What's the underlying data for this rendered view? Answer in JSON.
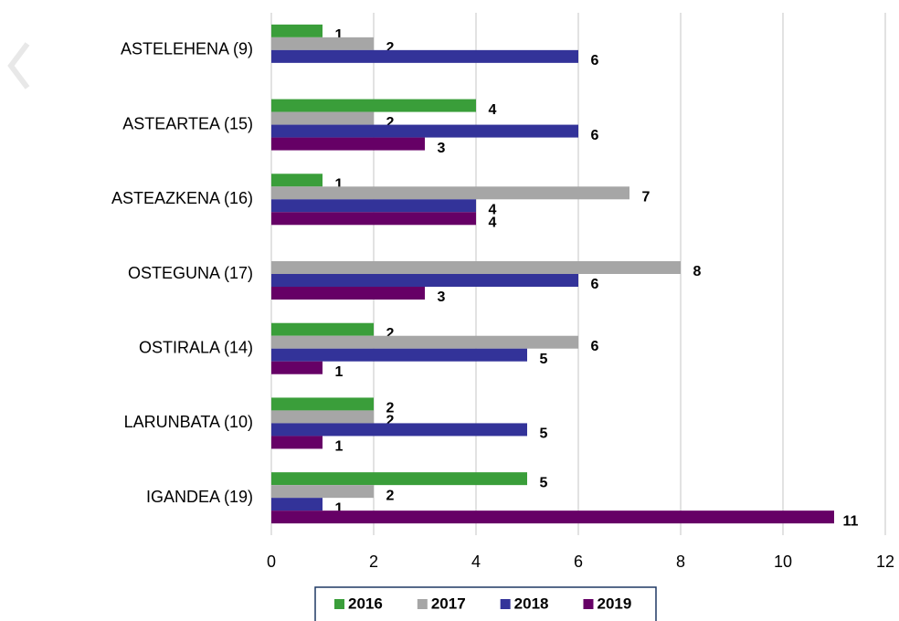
{
  "chart_data": {
    "type": "bar",
    "orientation": "horizontal",
    "categories": [
      "ASTELEHENA (9)",
      "ASTEARTEA (15)",
      "ASTEAZKENA (16)",
      "OSTEGUNA (17)",
      "OSTIRALA (14)",
      "LARUNBATA (10)",
      "IGANDEA (19)"
    ],
    "series": [
      {
        "name": "2016",
        "color": "#3a9e3a",
        "values": [
          1,
          4,
          1,
          null,
          2,
          2,
          5
        ]
      },
      {
        "name": "2017",
        "color": "#a6a6a6",
        "values": [
          2,
          2,
          7,
          8,
          6,
          2,
          2
        ]
      },
      {
        "name": "2018",
        "color": "#333399",
        "values": [
          6,
          6,
          4,
          6,
          5,
          5,
          1
        ]
      },
      {
        "name": "2019",
        "color": "#660066",
        "values": [
          null,
          3,
          4,
          3,
          1,
          1,
          11
        ]
      }
    ],
    "xlim": [
      0,
      12
    ],
    "xticks": [
      0,
      2,
      4,
      6,
      8,
      10,
      12
    ],
    "grid": true,
    "legend": "bottom"
  }
}
